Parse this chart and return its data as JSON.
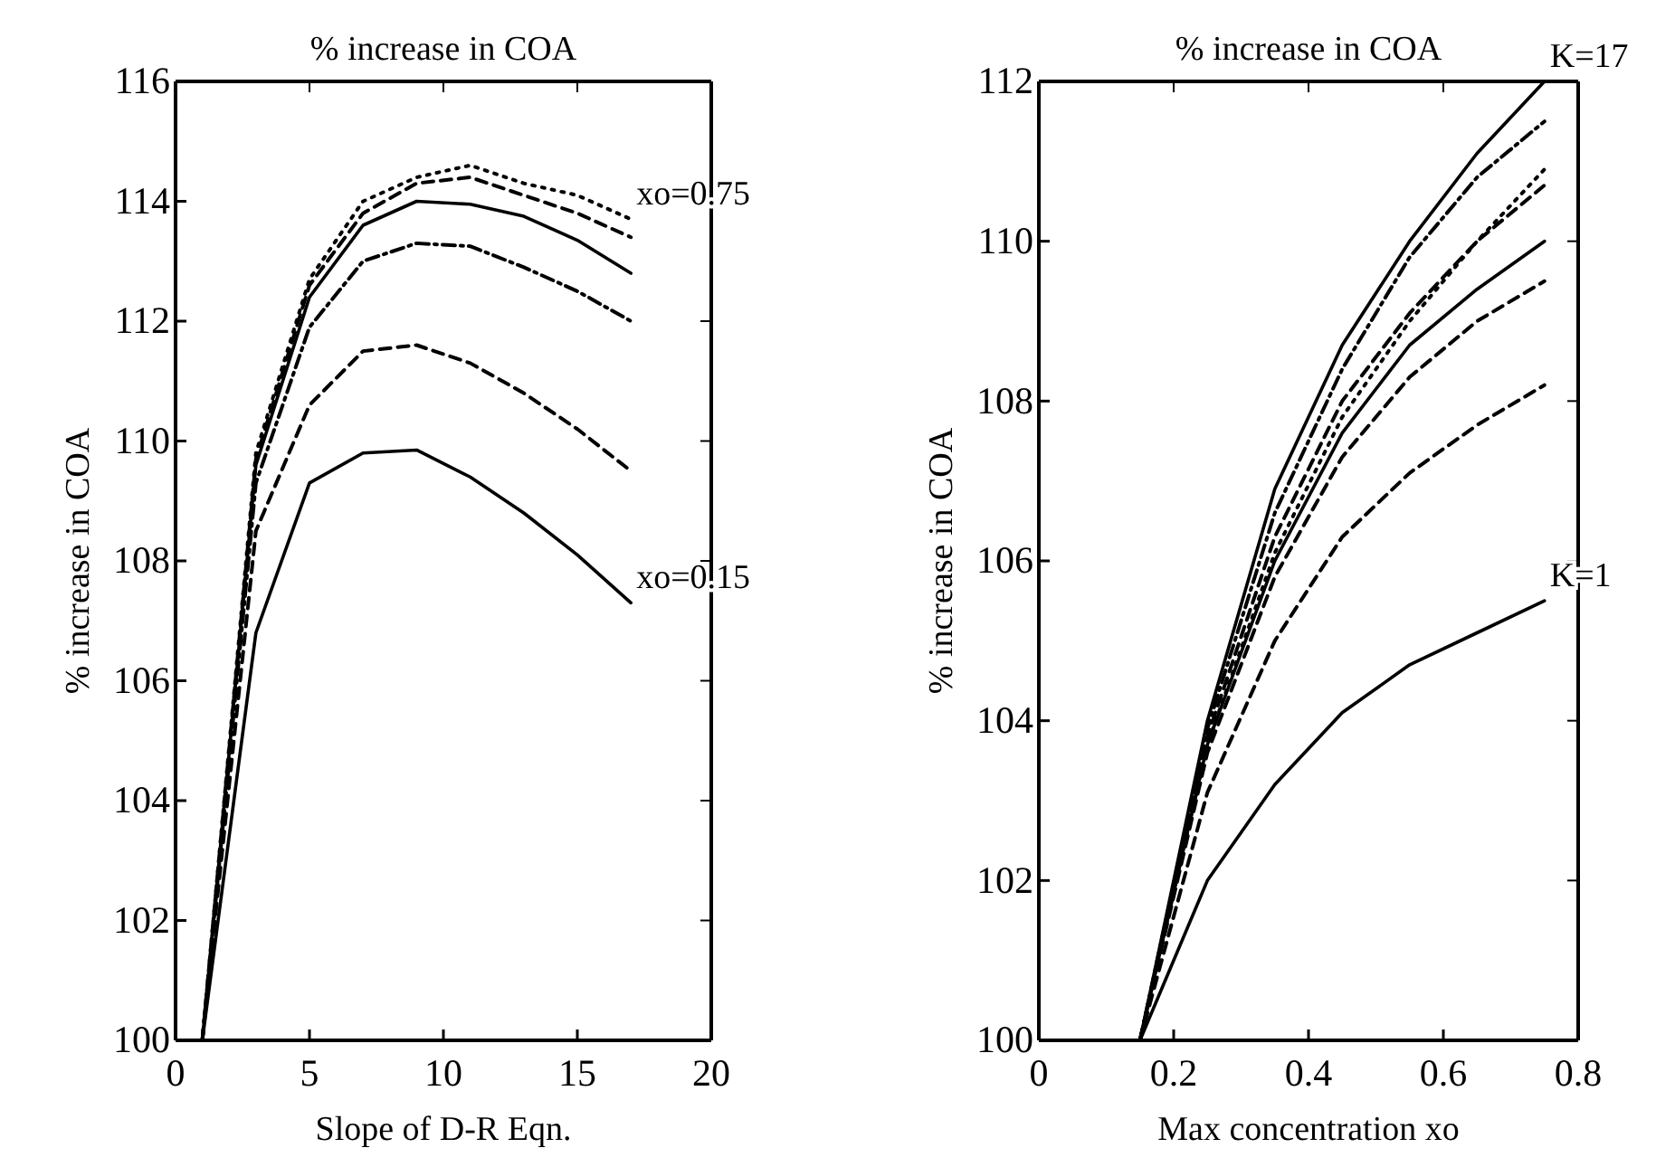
{
  "chart_data": [
    {
      "type": "line",
      "title": "% increase in COA",
      "xlabel": "Slope of D-R Eqn.",
      "ylabel": "% increase in COA",
      "x": [
        1,
        3,
        5,
        7,
        9,
        11,
        13,
        15,
        17
      ],
      "xlim": [
        0,
        20
      ],
      "ylim": [
        100,
        116
      ],
      "xticks": [
        0,
        5,
        10,
        15,
        20
      ],
      "yticks": [
        100,
        102,
        104,
        106,
        108,
        110,
        112,
        114,
        116
      ],
      "series": [
        {
          "name": "xo=0.15",
          "color": "#000000",
          "line_style": "solid",
          "values": [
            100,
            106.8,
            109.3,
            109.8,
            109.85,
            109.4,
            108.8,
            108.1,
            107.3
          ]
        },
        {
          "color": "#000000",
          "line_style": "dashed",
          "values": [
            100,
            108.5,
            110.6,
            111.5,
            111.6,
            111.3,
            110.8,
            110.2,
            109.5
          ]
        },
        {
          "color": "#000000",
          "line_style": "dashdot",
          "values": [
            100,
            109.3,
            111.9,
            113.0,
            113.3,
            113.25,
            112.9,
            112.5,
            112.0
          ]
        },
        {
          "color": "#000000",
          "line_style": "solid",
          "values": [
            100,
            109.6,
            112.4,
            113.6,
            114.0,
            113.95,
            113.75,
            113.35,
            112.8
          ]
        },
        {
          "color": "#000000",
          "line_style": "dashed",
          "values": [
            100,
            109.7,
            112.6,
            113.8,
            114.3,
            114.4,
            114.1,
            113.8,
            113.4
          ]
        },
        {
          "name": "xo=0.75",
          "color": "#000000",
          "line_style": "dotted",
          "values": [
            100,
            109.8,
            112.7,
            114.0,
            114.4,
            114.6,
            114.3,
            114.1,
            113.7
          ]
        }
      ]
    },
    {
      "type": "line",
      "title": "% increase in COA",
      "xlabel": "Max concentration xo",
      "ylabel": "% increase in COA",
      "x": [
        0.15,
        0.25,
        0.35,
        0.45,
        0.55,
        0.65,
        0.75
      ],
      "xlim": [
        0,
        0.8
      ],
      "ylim": [
        100,
        112
      ],
      "xticks": [
        0,
        0.2,
        0.4,
        0.6,
        0.8
      ],
      "yticks": [
        100,
        102,
        104,
        106,
        108,
        110,
        112
      ],
      "series": [
        {
          "name": "K=1",
          "color": "#000000",
          "line_style": "solid",
          "values": [
            100,
            102.0,
            103.2,
            104.1,
            104.7,
            105.1,
            105.5
          ]
        },
        {
          "color": "#000000",
          "line_style": "dashed",
          "values": [
            100,
            103.1,
            105.0,
            106.3,
            107.1,
            107.7,
            108.2
          ]
        },
        {
          "color": "#000000",
          "line_style": "dashed",
          "values": [
            100,
            103.6,
            105.8,
            107.3,
            108.3,
            109.0,
            109.5
          ]
        },
        {
          "color": "#000000",
          "line_style": "solid",
          "values": [
            100,
            103.7,
            106.0,
            107.6,
            108.7,
            109.4,
            110.0
          ]
        },
        {
          "color": "#000000",
          "line_style": "dotted",
          "values": [
            100,
            103.7,
            106.1,
            107.8,
            109.0,
            110.0,
            110.9
          ]
        },
        {
          "color": "#000000",
          "line_style": "dashed",
          "values": [
            100,
            103.8,
            106.3,
            108.0,
            109.1,
            110.0,
            110.7
          ]
        },
        {
          "color": "#000000",
          "line_style": "dashdot",
          "values": [
            100,
            103.9,
            106.6,
            108.4,
            109.8,
            110.8,
            111.5
          ]
        },
        {
          "name": "K=17",
          "color": "#000000",
          "line_style": "solid",
          "values": [
            100,
            104.0,
            106.9,
            108.7,
            110.0,
            111.1,
            112.0
          ]
        }
      ]
    }
  ]
}
